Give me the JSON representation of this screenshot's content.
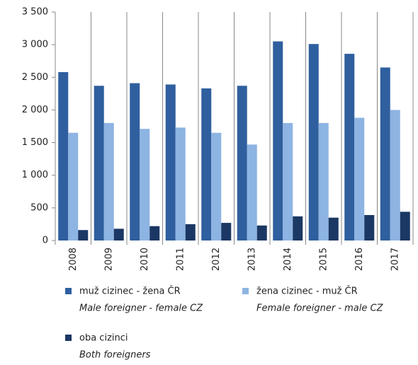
{
  "chart_data": {
    "type": "bar",
    "categories": [
      "2008",
      "2009",
      "2010",
      "2011",
      "2012",
      "2013",
      "2014",
      "2015",
      "2016",
      "2017"
    ],
    "series": [
      {
        "name": "muž cizinec - žena ČR",
        "name_en": "Male foreigner - female CZ",
        "color": "#2f5f9e",
        "values": [
          2580,
          2370,
          2410,
          2390,
          2330,
          2370,
          3050,
          3010,
          2860,
          2650
        ]
      },
      {
        "name": "žena cizinec - muž ČR",
        "name_en": "Female foreigner - male CZ",
        "color": "#8db4e2",
        "values": [
          1650,
          1800,
          1710,
          1730,
          1650,
          1470,
          1800,
          1800,
          1880,
          2000
        ]
      },
      {
        "name": "oba cizinci",
        "name_en": "Both foreigners",
        "color": "#1b3764",
        "values": [
          160,
          180,
          220,
          250,
          270,
          230,
          370,
          350,
          390,
          440
        ]
      }
    ],
    "ylim": [
      0,
      3500
    ],
    "yticks": [
      0,
      500,
      {
        "value": 1000,
        "label": "1 000"
      },
      {
        "value": 1500,
        "label": "1 500"
      },
      {
        "value": 2000,
        "label": "2 000"
      },
      {
        "value": 2500,
        "label": "2 500"
      },
      {
        "value": 3000,
        "label": "3 000"
      },
      {
        "value": 3500,
        "label": "3 500"
      }
    ],
    "legend": "bottom"
  }
}
